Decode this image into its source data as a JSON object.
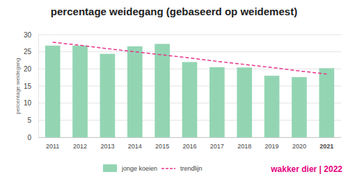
{
  "chart_data": {
    "type": "bar",
    "title": "percentage weidegang (gebaseerd op weidemest)",
    "y_label": "percentage weidegang",
    "categories": [
      "2011",
      "2012",
      "2013",
      "2014",
      "2015",
      "2016",
      "2017",
      "2018",
      "2019",
      "2020",
      "2021"
    ],
    "series": [
      {
        "name": "jonge koeien",
        "type": "bar",
        "color": "#93d5b3",
        "values": [
          26.8,
          26.8,
          24.4,
          26.6,
          27.3,
          22.0,
          20.5,
          20.4,
          18.0,
          17.6,
          20.2
        ]
      },
      {
        "name": "trendlijn",
        "type": "line",
        "color": "#e8318a",
        "line_style": "dashed",
        "values": [
          27.8,
          26.9,
          25.9,
          25.0,
          24.1,
          23.2,
          22.2,
          21.3,
          20.4,
          19.4,
          18.5
        ]
      }
    ],
    "ylim": [
      0,
      30
    ],
    "yticks": [
      0,
      5,
      10,
      15,
      20,
      25,
      30
    ],
    "grid": true,
    "legend": "bottom",
    "annotations": [
      "wakker dier | 2022"
    ]
  }
}
